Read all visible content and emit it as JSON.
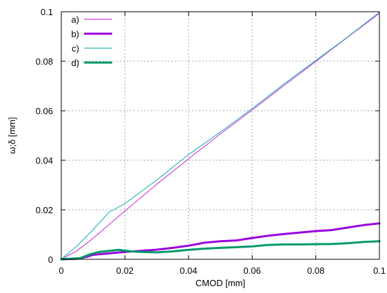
{
  "chart_data": {
    "type": "line",
    "xlabel": "CMOD [mm]",
    "ylabel": "ω;δ [mm]",
    "xlim": [
      0,
      0.1
    ],
    "ylim": [
      0,
      0.1
    ],
    "xticks": [
      "0",
      "0.02",
      "0.04",
      "0.06",
      "0.08",
      "0.1"
    ],
    "yticks": [
      "0",
      "0.02",
      "0.04",
      "0.06",
      "0.08",
      "0.1"
    ],
    "grid": true,
    "legend_position": "top-left",
    "series": [
      {
        "name": "a)",
        "color": "#cc44dd",
        "weight": "thin",
        "x": [
          0,
          0.005,
          0.01,
          0.015,
          0.02,
          0.03,
          0.04,
          0.05,
          0.06,
          0.07,
          0.08,
          0.09,
          0.1
        ],
        "y": [
          0,
          0.0035,
          0.0085,
          0.014,
          0.0195,
          0.0303,
          0.0406,
          0.0506,
          0.0603,
          0.0702,
          0.0799,
          0.0897,
          0.0993
        ]
      },
      {
        "name": "b)",
        "color": "#9900dd",
        "weight": "thick",
        "x": [
          0,
          0.005,
          0.008,
          0.01,
          0.015,
          0.02,
          0.025,
          0.03,
          0.035,
          0.04,
          0.045,
          0.05,
          0.055,
          0.06,
          0.065,
          0.07,
          0.075,
          0.08,
          0.085,
          0.09,
          0.095,
          0.1
        ],
        "y": [
          0,
          0.0002,
          0.001,
          0.0018,
          0.0024,
          0.003,
          0.0034,
          0.0039,
          0.0046,
          0.0055,
          0.0067,
          0.0073,
          0.0076,
          0.0086,
          0.0095,
          0.0102,
          0.0108,
          0.0114,
          0.0118,
          0.0128,
          0.0138,
          0.0145
        ]
      },
      {
        "name": "c)",
        "color": "#33b8b8",
        "weight": "thin",
        "x": [
          0,
          0.005,
          0.01,
          0.015,
          0.02,
          0.03,
          0.04,
          0.05,
          0.06,
          0.07,
          0.08,
          0.09,
          0.1
        ],
        "y": [
          0,
          0.0055,
          0.012,
          0.019,
          0.0225,
          0.032,
          0.0423,
          0.0514,
          0.0609,
          0.0708,
          0.0803,
          0.0898,
          0.0998
        ]
      },
      {
        "name": "d)",
        "color": "#009966",
        "weight": "thick",
        "x": [
          0,
          0.006,
          0.009,
          0.012,
          0.015,
          0.018,
          0.02,
          0.022,
          0.025,
          0.03,
          0.035,
          0.04,
          0.045,
          0.05,
          0.055,
          0.06,
          0.065,
          0.07,
          0.075,
          0.08,
          0.085,
          0.09,
          0.095,
          0.1
        ],
        "y": [
          0,
          0.0005,
          0.002,
          0.003,
          0.0034,
          0.0038,
          0.0035,
          0.0032,
          0.003,
          0.0028,
          0.0032,
          0.0038,
          0.0043,
          0.0046,
          0.0049,
          0.0052,
          0.0058,
          0.006,
          0.006,
          0.0061,
          0.0062,
          0.0065,
          0.007,
          0.0073
        ]
      }
    ]
  }
}
